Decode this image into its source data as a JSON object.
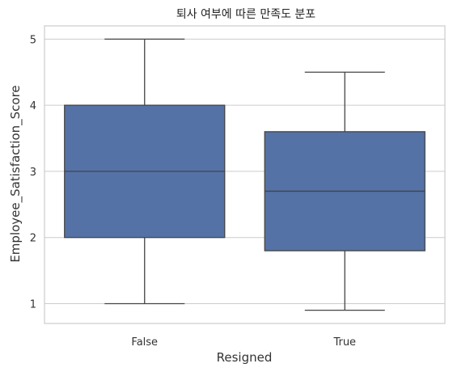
{
  "chart_data": {
    "type": "box",
    "title": "퇴사 여부에 따른 만족도 분포",
    "xlabel": "Resigned",
    "ylabel": "Employee_Satisfaction_Score",
    "ylim": [
      0.7,
      5.2
    ],
    "yticks": [
      "1",
      "2",
      "3",
      "4",
      "5"
    ],
    "grid": "horizontal",
    "categories": [
      "False",
      "True"
    ],
    "boxes": [
      {
        "category": "False",
        "whisker_low": 1.0,
        "q1": 2.0,
        "median": 3.0,
        "q3": 4.0,
        "whisker_high": 5.0
      },
      {
        "category": "True",
        "whisker_low": 0.9,
        "q1": 1.8,
        "median": 2.7,
        "q3": 3.6,
        "whisker_high": 4.5
      }
    ],
    "colors": {
      "box_fill": "#5572a6",
      "line": "#444444",
      "grid": "#cccccc",
      "frame": "#cccccc"
    }
  }
}
